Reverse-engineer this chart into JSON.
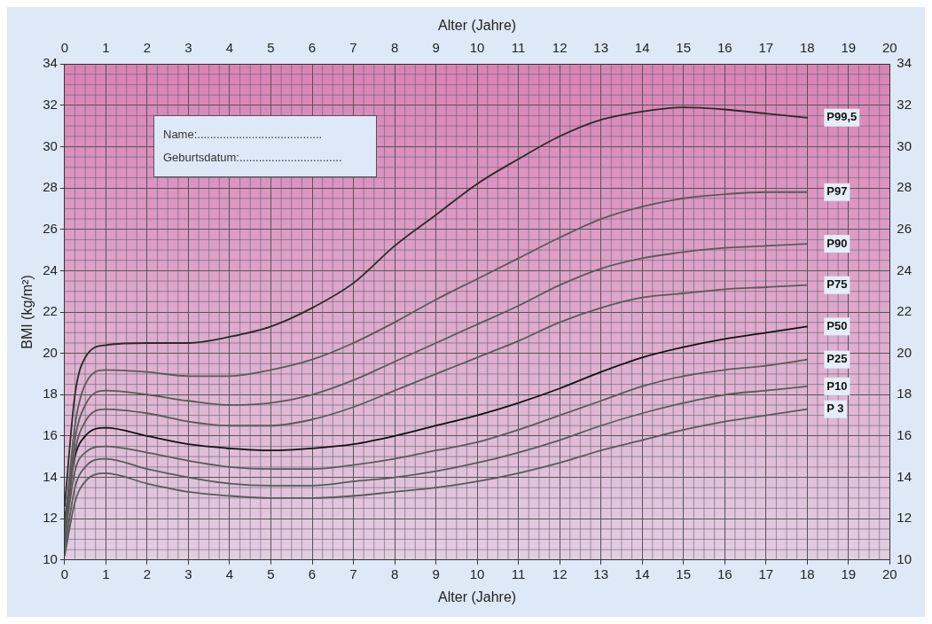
{
  "chart_data": {
    "type": "line",
    "xlabel": "Alter (Jahre)",
    "x2label": "Alter (Jahre)",
    "ylabel": "BMI (kg/m²)",
    "x": [
      0,
      0.25,
      0.5,
      1,
      2,
      3,
      4,
      5,
      6,
      7,
      8,
      9,
      10,
      11,
      12,
      13,
      14,
      15,
      16,
      17,
      18
    ],
    "series": [
      {
        "name": "P99,5",
        "color": "#2a2a2a",
        "values": [
          12.6,
          18.0,
          19.8,
          20.4,
          20.5,
          20.5,
          20.8,
          21.3,
          22.2,
          23.4,
          25.2,
          26.7,
          28.2,
          29.4,
          30.5,
          31.3,
          31.7,
          31.9,
          31.8,
          31.6,
          31.4
        ]
      },
      {
        "name": "P97",
        "color": "#5a5a5a",
        "values": [
          11.5,
          16.5,
          18.5,
          19.2,
          19.1,
          18.9,
          18.9,
          19.2,
          19.7,
          20.5,
          21.5,
          22.6,
          23.6,
          24.6,
          25.6,
          26.5,
          27.1,
          27.5,
          27.7,
          27.8,
          27.8
        ]
      },
      {
        "name": "P90",
        "color": "#5a5a5a",
        "values": [
          11.0,
          15.8,
          17.5,
          18.2,
          18.0,
          17.7,
          17.5,
          17.6,
          18.0,
          18.7,
          19.6,
          20.5,
          21.4,
          22.3,
          23.3,
          24.1,
          24.6,
          24.9,
          25.1,
          25.2,
          25.3
        ]
      },
      {
        "name": "P75",
        "color": "#5a5a5a",
        "values": [
          10.8,
          15.2,
          16.7,
          17.3,
          17.1,
          16.7,
          16.5,
          16.5,
          16.8,
          17.4,
          18.2,
          19.0,
          19.8,
          20.6,
          21.5,
          22.2,
          22.7,
          22.9,
          23.1,
          23.2,
          23.3
        ]
      },
      {
        "name": "P50",
        "color": "#111111",
        "values": [
          12.0,
          15.0,
          16.0,
          16.4,
          16.0,
          15.6,
          15.4,
          15.3,
          15.4,
          15.6,
          16.0,
          16.5,
          17.0,
          17.6,
          18.3,
          19.1,
          19.8,
          20.3,
          20.7,
          21.0,
          21.3
        ]
      },
      {
        "name": "P25",
        "color": "#5a5a5a",
        "values": [
          11.0,
          14.3,
          15.2,
          15.5,
          15.2,
          14.8,
          14.5,
          14.4,
          14.4,
          14.6,
          14.9,
          15.3,
          15.7,
          16.3,
          17.0,
          17.7,
          18.4,
          18.9,
          19.2,
          19.4,
          19.7
        ]
      },
      {
        "name": "P10",
        "color": "#5a5a5a",
        "values": [
          10.5,
          13.5,
          14.5,
          14.9,
          14.4,
          14.0,
          13.7,
          13.6,
          13.6,
          13.8,
          14.0,
          14.3,
          14.7,
          15.2,
          15.8,
          16.5,
          17.1,
          17.6,
          18.0,
          18.2,
          18.4
        ]
      },
      {
        "name": "P 3",
        "color": "#5a5a5a",
        "values": [
          10.2,
          12.8,
          13.8,
          14.2,
          13.7,
          13.3,
          13.1,
          13.0,
          13.0,
          13.1,
          13.3,
          13.5,
          13.8,
          14.2,
          14.7,
          15.3,
          15.8,
          16.3,
          16.7,
          17.0,
          17.3
        ]
      }
    ],
    "xlim": [
      0,
      20
    ],
    "xticks": [
      0,
      1,
      2,
      3,
      4,
      5,
      6,
      7,
      8,
      9,
      10,
      11,
      12,
      13,
      14,
      15,
      16,
      17,
      18,
      19,
      20
    ],
    "x2lim": [
      0,
      20
    ],
    "x2ticks": [
      0,
      1,
      2,
      3,
      4,
      5,
      6,
      7,
      8,
      9,
      10,
      11,
      12,
      13,
      14,
      15,
      16,
      17,
      18,
      19,
      20
    ],
    "ylim": [
      10,
      34
    ],
    "yticks": [
      10,
      12,
      14,
      16,
      18,
      20,
      22,
      24,
      26,
      28,
      30,
      32,
      34
    ],
    "y2lim": [
      10,
      34
    ],
    "y2ticks": [
      10,
      12,
      14,
      16,
      18,
      20,
      22,
      24,
      26,
      28,
      30,
      32,
      34
    ],
    "grid": true,
    "legend": false,
    "marker": "none",
    "line_style": "solid",
    "annotations": [
      "Name:.......................................",
      "Geburtsdatum:................................"
    ]
  }
}
